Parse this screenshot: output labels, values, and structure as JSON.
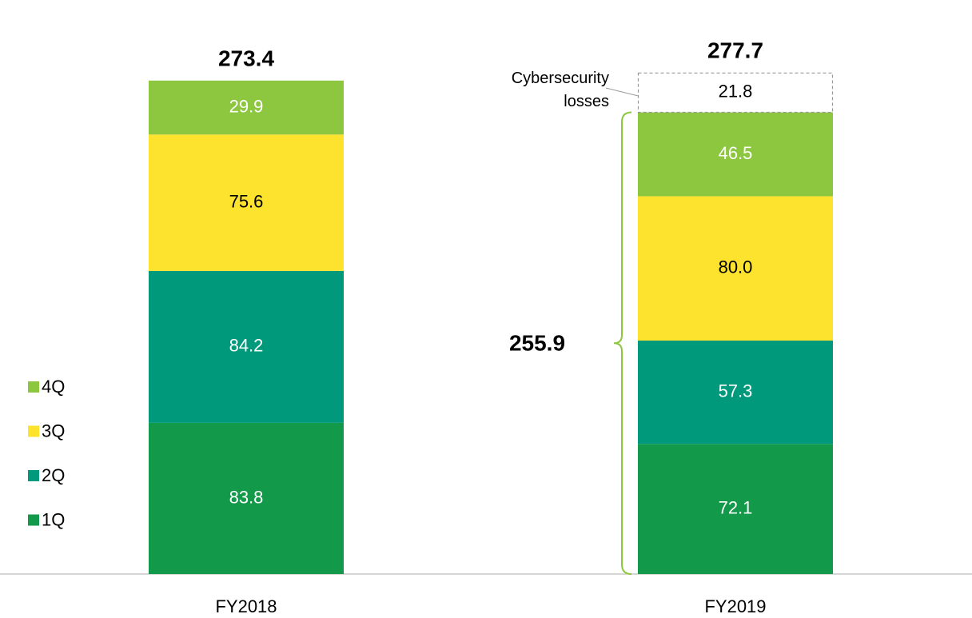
{
  "chart_data": {
    "type": "stacked_bar",
    "categories": [
      "FY2018",
      "FY2019"
    ],
    "series": [
      {
        "name": "1Q",
        "color": "#12994a",
        "label_color": "#ffffff",
        "values": [
          83.8,
          72.1
        ]
      },
      {
        "name": "2Q",
        "color": "#00997b",
        "label_color": "#ffffff",
        "values": [
          84.2,
          57.3
        ]
      },
      {
        "name": "3Q",
        "color": "#fde22e",
        "label_color": "#000000",
        "values": [
          75.6,
          80.0
        ],
        "value_labels": [
          "75.6",
          "80.0"
        ]
      },
      {
        "name": "4Q",
        "color": "#8dc63f",
        "label_color": "#ffffff",
        "values": [
          29.9,
          46.5
        ]
      },
      {
        "name": "Cybersecurity losses",
        "style": "dashed",
        "color": "#ffffff",
        "label_color": "#000000",
        "values": [
          null,
          21.8
        ]
      }
    ],
    "totals": [
      273.4,
      277.7
    ],
    "subtotal": {
      "category": 1,
      "value": 255.9,
      "color": "#8dc63f"
    },
    "ylim": [
      0,
      300
    ],
    "legend": "left"
  }
}
